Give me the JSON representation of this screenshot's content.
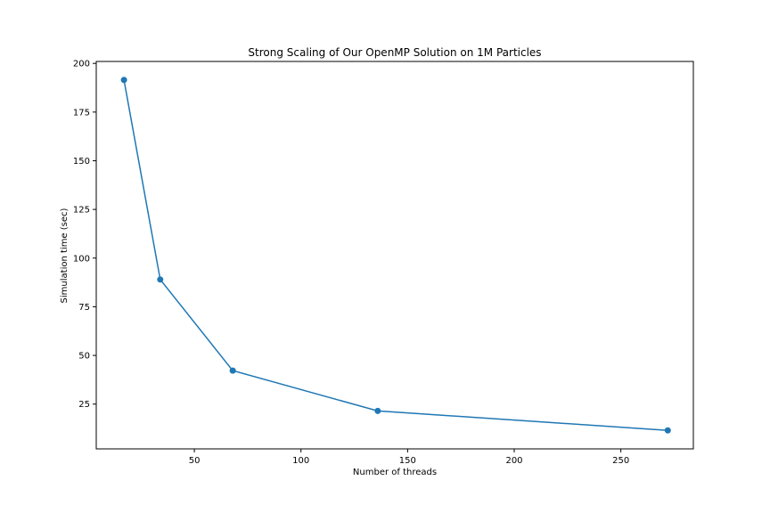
{
  "chart_data": {
    "type": "line",
    "title": "Strong Scaling of Our OpenMP Solution on 1M Particles",
    "xlabel": "Number of threads",
    "ylabel": "Simulation time (sec)",
    "xlim": [
      4,
      284
    ],
    "ylim": [
      2,
      201
    ],
    "xticks": [
      50,
      100,
      150,
      200,
      250
    ],
    "yticks": [
      25,
      50,
      75,
      100,
      125,
      150,
      175,
      200
    ],
    "grid": false,
    "series": [
      {
        "color": "#1f77b4",
        "marker": "circle",
        "points": [
          {
            "x": 17,
            "y": 191.5
          },
          {
            "x": 34,
            "y": 89.0
          },
          {
            "x": 68,
            "y": 42.2
          },
          {
            "x": 136,
            "y": 21.5
          },
          {
            "x": 272,
            "y": 11.5
          }
        ]
      }
    ]
  }
}
